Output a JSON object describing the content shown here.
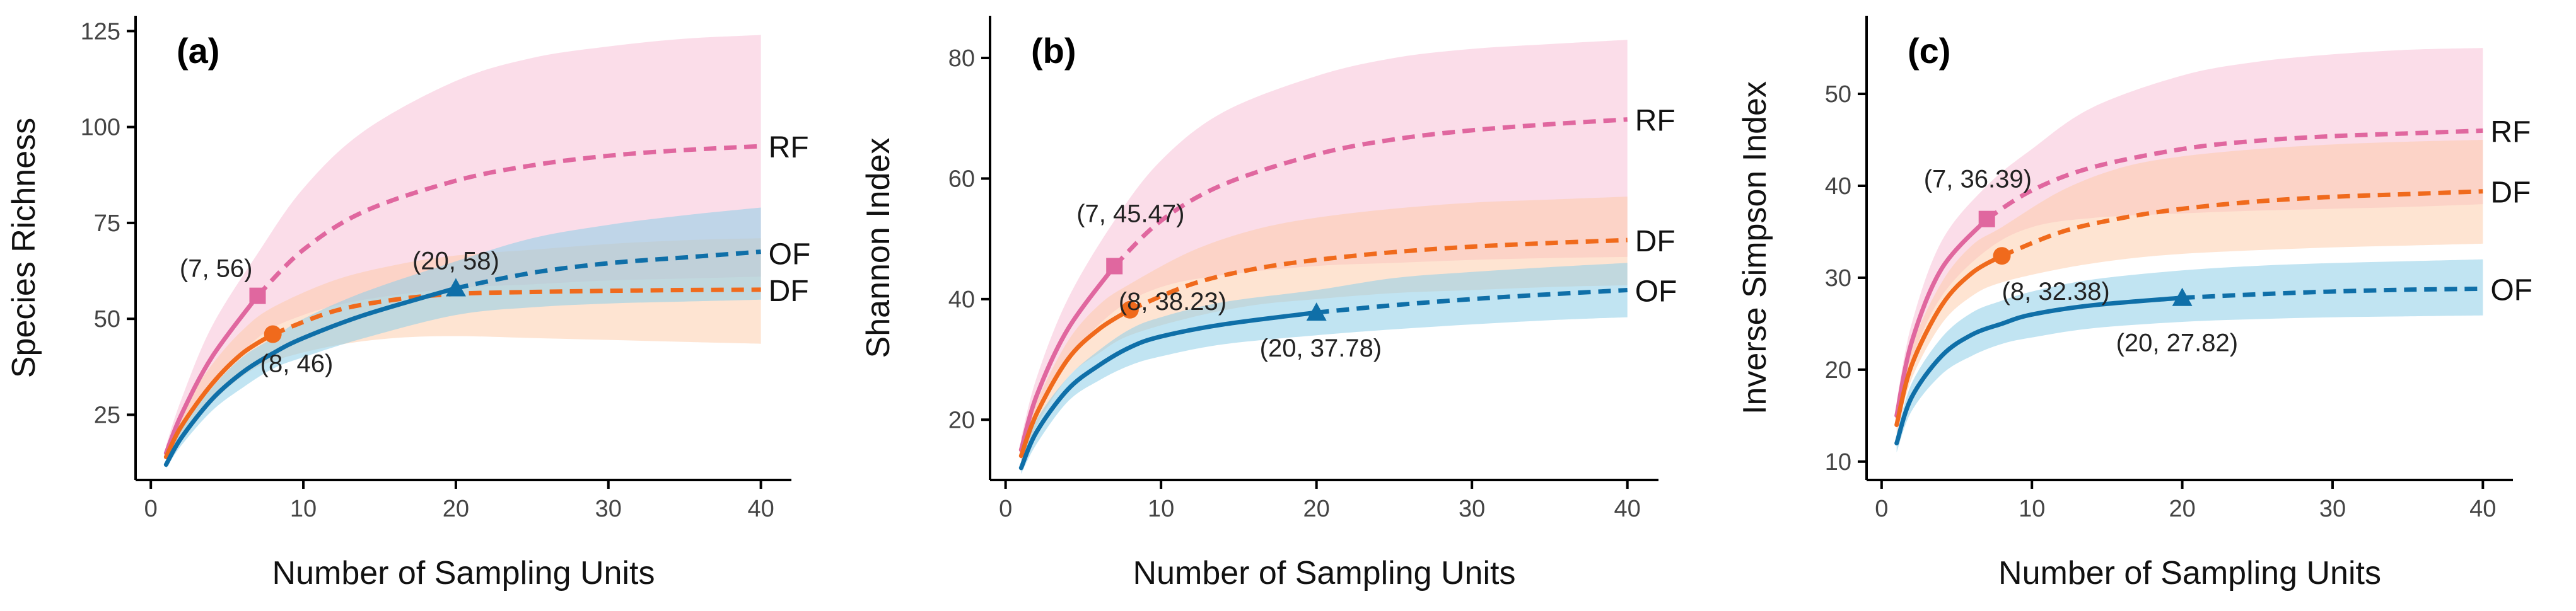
{
  "colors": {
    "RF": "#E0679F",
    "DF": "#F06A1C",
    "OF": "#0F6FA8",
    "RF_band": "#F8BBD4",
    "DF_band": "#FDC9A6",
    "OF_band": "#8ECDE8",
    "axis": "#000000",
    "tick_text": "#444444"
  },
  "chart_data": [
    {
      "type": "line",
      "panel_label": "(a)",
      "xlabel": "Number of Sampling Units",
      "ylabel": "Species Richness",
      "xlim": [
        -1,
        42
      ],
      "ylim": [
        8,
        129
      ],
      "xticks": [
        0,
        10,
        20,
        30,
        40
      ],
      "xtick_labels": [
        "0",
        "10",
        "20",
        "30",
        "40"
      ],
      "yticks": [
        25,
        50,
        75,
        100,
        125
      ],
      "ytick_labels": [
        "25",
        "50",
        "75",
        "100",
        "125"
      ],
      "series": [
        {
          "name": "RF",
          "end_label": "RF",
          "obs_x": 7,
          "obs_y": 56,
          "obs_label": "(7, 56)",
          "marker": "square",
          "x": [
            1,
            2,
            4,
            7,
            10,
            14,
            20,
            25,
            30,
            35,
            40
          ],
          "y": [
            15,
            25,
            40,
            56,
            68,
            78,
            86,
            90,
            92.5,
            94,
            95
          ],
          "lo": [
            13,
            21,
            32,
            45,
            51,
            55,
            58,
            59,
            60,
            60.5,
            61
          ],
          "hi": [
            17,
            29,
            48,
            67,
            84,
            99,
            112,
            118,
            121,
            123,
            124
          ]
        },
        {
          "name": "DF",
          "end_label": "DF",
          "obs_x": 8,
          "obs_y": 46,
          "obs_label": "(8, 46)",
          "marker": "circle",
          "x": [
            1,
            2,
            4,
            6,
            8,
            12,
            16,
            20,
            25,
            30,
            35,
            40
          ],
          "y": [
            14,
            22,
            33,
            41,
            46,
            52,
            55,
            56.5,
            57,
            57.3,
            57.5,
            57.6
          ],
          "lo": [
            12,
            18,
            28,
            35,
            39,
            43,
            45,
            45.5,
            45,
            44.5,
            44,
            43.5
          ],
          "hi": [
            16,
            26,
            38,
            47,
            53,
            60,
            64,
            66.5,
            68,
            69.5,
            70.5,
            71
          ]
        },
        {
          "name": "OF",
          "end_label": "OF",
          "obs_x": 20,
          "obs_y": 58,
          "obs_label": "(20, 58)",
          "marker": "triangle",
          "x": [
            1,
            2,
            4,
            6,
            8,
            10,
            14,
            20,
            25,
            30,
            35,
            40
          ],
          "y": [
            12,
            19,
            29,
            36,
            41,
            45,
            51,
            58,
            62,
            64.5,
            66,
            67.5
          ],
          "lo": [
            11,
            17,
            26,
            32,
            37,
            40,
            45,
            51,
            53,
            54,
            54.5,
            55
          ],
          "hi": [
            13,
            21,
            32,
            40,
            45,
            50,
            57,
            65,
            71,
            74.5,
            77,
            79
          ]
        }
      ]
    },
    {
      "type": "line",
      "panel_label": "(b)",
      "xlabel": "Number of Sampling Units",
      "ylabel": "Shannon Index",
      "xlim": [
        -1,
        42
      ],
      "ylim": [
        10,
        87
      ],
      "xticks": [
        0,
        10,
        20,
        30,
        40
      ],
      "xtick_labels": [
        "0",
        "10",
        "20",
        "30",
        "40"
      ],
      "yticks": [
        20,
        40,
        60,
        80
      ],
      "ytick_labels": [
        "20",
        "40",
        "60",
        "80"
      ],
      "series": [
        {
          "name": "RF",
          "end_label": "RF",
          "obs_x": 7,
          "obs_y": 45.47,
          "obs_label": "(7, 45.47)",
          "marker": "square",
          "x": [
            1,
            2,
            4,
            7,
            10,
            14,
            20,
            25,
            30,
            35,
            40
          ],
          "y": [
            15,
            24,
            35,
            45.47,
            53,
            59,
            64,
            66.5,
            68,
            69,
            69.8
          ],
          "lo": [
            13,
            21,
            30,
            38,
            42,
            44,
            45.5,
            46,
            46.5,
            46.8,
            47
          ],
          "hi": [
            17,
            27,
            40,
            53,
            63,
            71,
            77,
            80,
            81.5,
            82.3,
            83
          ]
        },
        {
          "name": "DF",
          "end_label": "DF",
          "obs_x": 8,
          "obs_y": 38.23,
          "obs_label": "(8, 38.23)",
          "marker": "circle",
          "x": [
            1,
            2,
            4,
            6,
            8,
            12,
            16,
            20,
            25,
            30,
            35,
            40
          ],
          "y": [
            14,
            21,
            30,
            35,
            38.23,
            42.5,
            45,
            46.5,
            47.8,
            48.7,
            49.3,
            49.8
          ],
          "lo": [
            12,
            19,
            27,
            31,
            34,
            37,
            39,
            40,
            41,
            41.5,
            42,
            42.3
          ],
          "hi": [
            16,
            23,
            33,
            39,
            42.5,
            48,
            51.5,
            53.5,
            55,
            56,
            56.5,
            57
          ]
        },
        {
          "name": "OF",
          "end_label": "OF",
          "obs_x": 20,
          "obs_y": 37.78,
          "obs_label": "(20, 37.78)",
          "marker": "triangle",
          "x": [
            1,
            2,
            4,
            6,
            8,
            10,
            14,
            20,
            25,
            30,
            35,
            40
          ],
          "y": [
            12,
            18,
            25,
            29,
            32,
            33.8,
            35.8,
            37.78,
            39,
            40,
            40.8,
            41.5
          ],
          "lo": [
            11,
            16,
            23,
            26.5,
            29,
            30.5,
            32.5,
            34,
            35,
            35.8,
            36.5,
            37
          ],
          "hi": [
            13,
            20,
            27,
            31.5,
            35,
            37,
            39.5,
            41.5,
            43.5,
            44.5,
            45.3,
            46
          ]
        }
      ]
    },
    {
      "type": "line",
      "panel_label": "(c)",
      "xlabel": "Number of Sampling Units",
      "ylabel": "Inverse Simpson Index",
      "xlim": [
        -1,
        42
      ],
      "ylim": [
        8,
        58.5
      ],
      "xticks": [
        0,
        10,
        20,
        30,
        40
      ],
      "xtick_labels": [
        "0",
        "10",
        "20",
        "30",
        "40"
      ],
      "yticks": [
        10,
        20,
        30,
        40,
        50
      ],
      "ytick_labels": [
        "10",
        "20",
        "30",
        "40",
        "50"
      ],
      "series": [
        {
          "name": "RF",
          "end_label": "RF",
          "obs_x": 7,
          "obs_y": 36.39,
          "obs_label": "(7, 36.39)",
          "marker": "square",
          "x": [
            1,
            2,
            4,
            7,
            10,
            14,
            20,
            25,
            30,
            35,
            40
          ],
          "y": [
            15,
            23,
            31,
            36.39,
            39.5,
            42,
            44,
            44.9,
            45.4,
            45.7,
            46
          ],
          "lo": [
            13.5,
            21,
            28,
            33,
            35.5,
            36.5,
            37,
            37.3,
            37.5,
            37.7,
            38
          ],
          "hi": [
            16.5,
            25,
            34,
            40,
            44,
            48.5,
            52,
            53.5,
            54.3,
            54.8,
            55
          ]
        },
        {
          "name": "DF",
          "end_label": "DF",
          "obs_x": 8,
          "obs_y": 32.38,
          "obs_label": "(8, 32.38)",
          "marker": "circle",
          "x": [
            1,
            2,
            4,
            6,
            8,
            12,
            16,
            20,
            25,
            30,
            35,
            40
          ],
          "y": [
            14,
            20.5,
            27,
            30.5,
            32.38,
            35,
            36.5,
            37.5,
            38.3,
            38.8,
            39.1,
            39.4
          ],
          "lo": [
            13,
            19,
            25,
            28,
            29.5,
            31,
            32,
            32.6,
            33,
            33.3,
            33.5,
            33.7
          ],
          "hi": [
            15,
            22.5,
            29.5,
            33.5,
            35.5,
            39.5,
            42,
            43.2,
            44,
            44.5,
            44.8,
            45
          ]
        },
        {
          "name": "OF",
          "end_label": "OF",
          "obs_x": 20,
          "obs_y": 27.82,
          "obs_label": "(20, 27.82)",
          "marker": "triangle",
          "x": [
            1,
            2,
            4,
            6,
            8,
            10,
            14,
            20,
            25,
            30,
            35,
            40
          ],
          "y": [
            12,
            17,
            21.5,
            23.8,
            25,
            26,
            27,
            27.82,
            28.2,
            28.5,
            28.7,
            28.8
          ],
          "lo": [
            11,
            15.5,
            19.5,
            21.5,
            22.8,
            23.5,
            24.5,
            25.2,
            25.5,
            25.7,
            25.8,
            25.9
          ],
          "hi": [
            13,
            18.5,
            23.5,
            26.2,
            27.5,
            28.5,
            29.8,
            30.8,
            31.3,
            31.6,
            31.8,
            32
          ]
        }
      ]
    }
  ]
}
